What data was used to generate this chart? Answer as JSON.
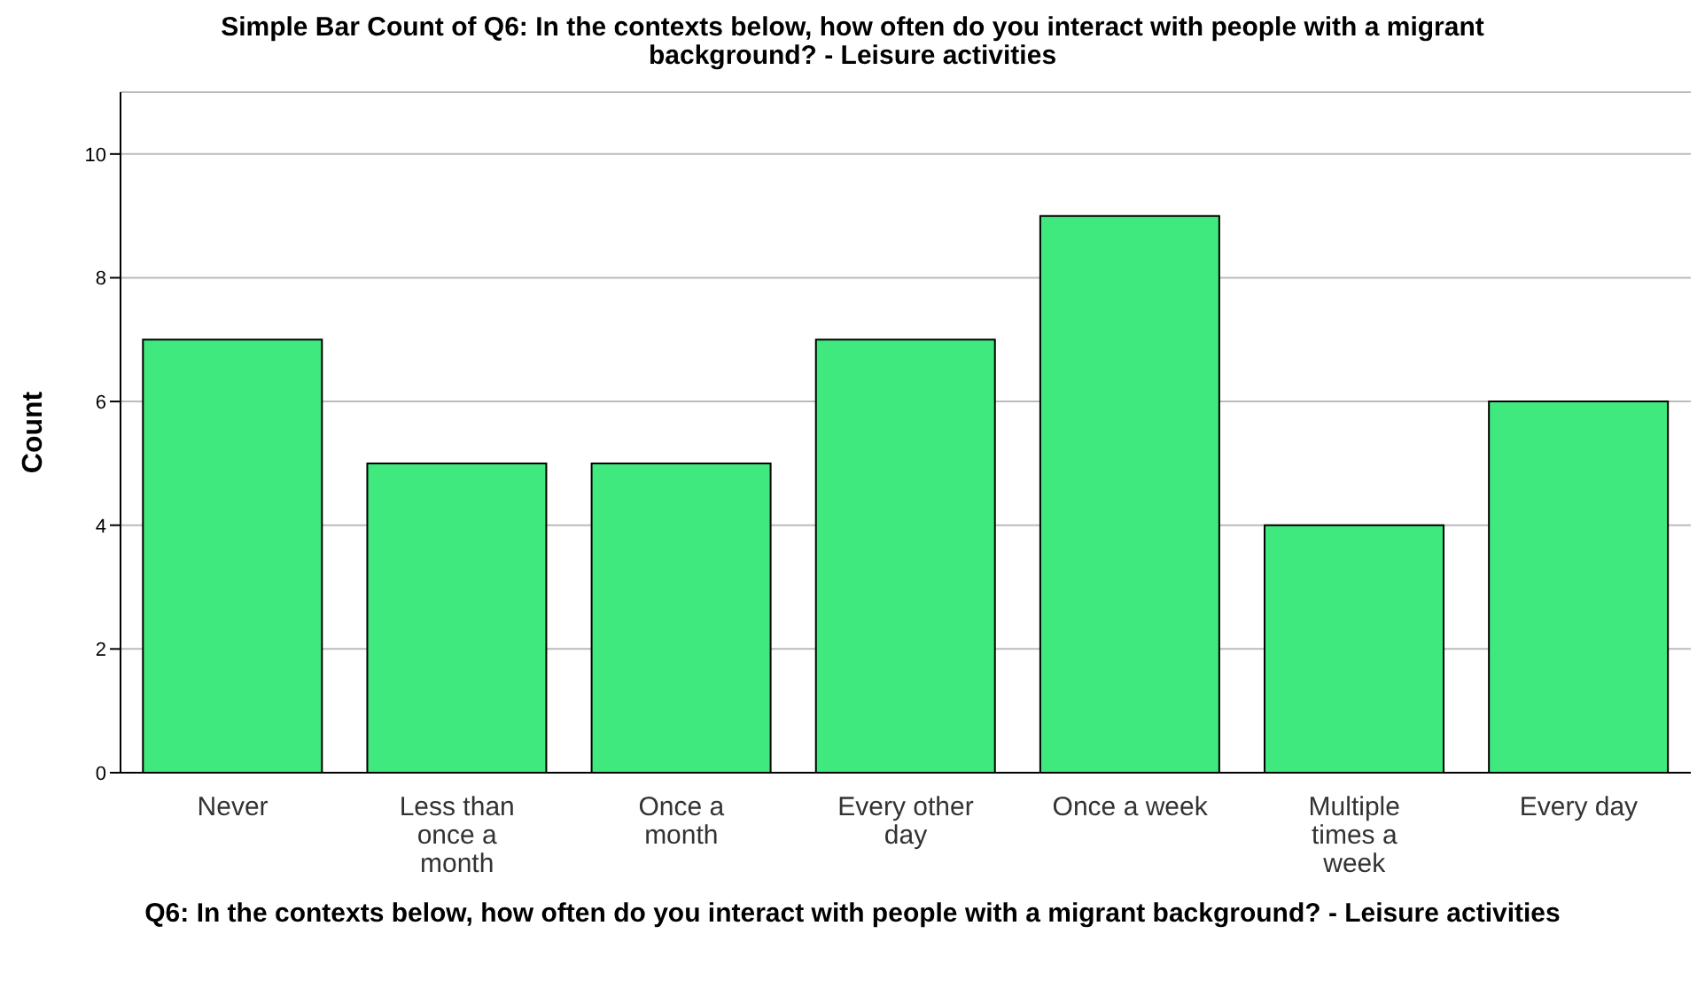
{
  "chart_data": {
    "type": "bar",
    "title": "Simple Bar Count of Q6: In the contexts below, how often do you interact with people with a migrant background? - Leisure activities",
    "xlabel": "Q6: In the contexts below, how often do you interact with people with a migrant background? - Leisure activities",
    "ylabel": "Count",
    "categories": [
      "Never",
      "Less than once a month",
      "Once a month",
      "Every other day",
      "Once a week",
      "Multiple times a week",
      "Every day"
    ],
    "values": [
      7,
      5,
      5,
      7,
      9,
      4,
      6
    ],
    "color": "#40e97e",
    "ylim": [
      0,
      11
    ],
    "yticks": [
      0,
      2,
      4,
      6,
      8,
      10
    ],
    "grid": "y"
  }
}
